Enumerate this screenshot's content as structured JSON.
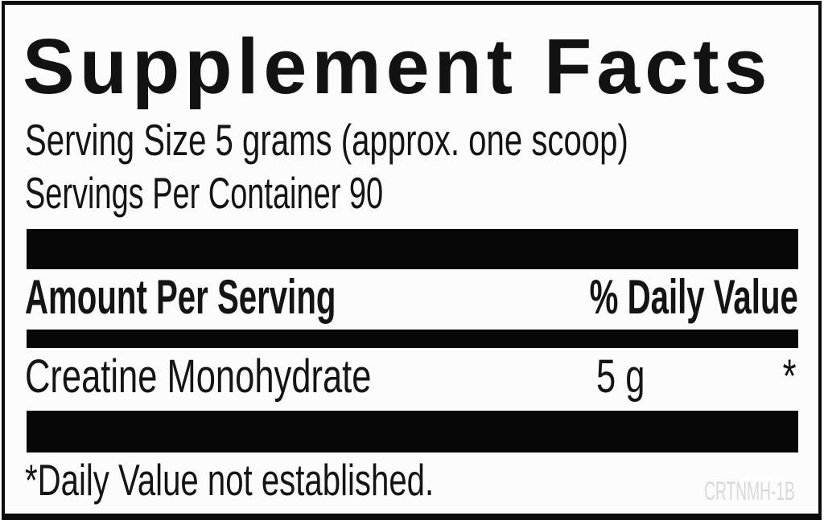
{
  "label": {
    "title": "Supplement Facts",
    "serving_size": "Serving Size 5 grams (approx. one scoop)",
    "servings_per_container": "Servings Per Container 90",
    "table": {
      "header": {
        "amount_col": "Amount Per Serving",
        "dv_col": "% Daily Value"
      },
      "rows": [
        {
          "name": "Creatine Monohydrate",
          "amount": "5 g",
          "daily_value": "*"
        }
      ]
    },
    "footnote": "*Daily Value not established.",
    "product_code": "CRTNMH-1B",
    "colors": {
      "ink": "#141414",
      "bar": "#070707",
      "border": "#0b0b0b",
      "code_gray": "#d9d9d9",
      "background": "#fcfcfc"
    }
  }
}
